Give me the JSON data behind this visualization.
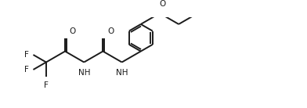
{
  "background_color": "#ffffff",
  "line_color": "#1a1a1a",
  "line_width": 1.4,
  "font_size": 7.5,
  "figsize": [
    3.92,
    1.38
  ],
  "dpi": 100,
  "xlim": [
    0,
    10
  ],
  "ylim": [
    0,
    3.52
  ]
}
